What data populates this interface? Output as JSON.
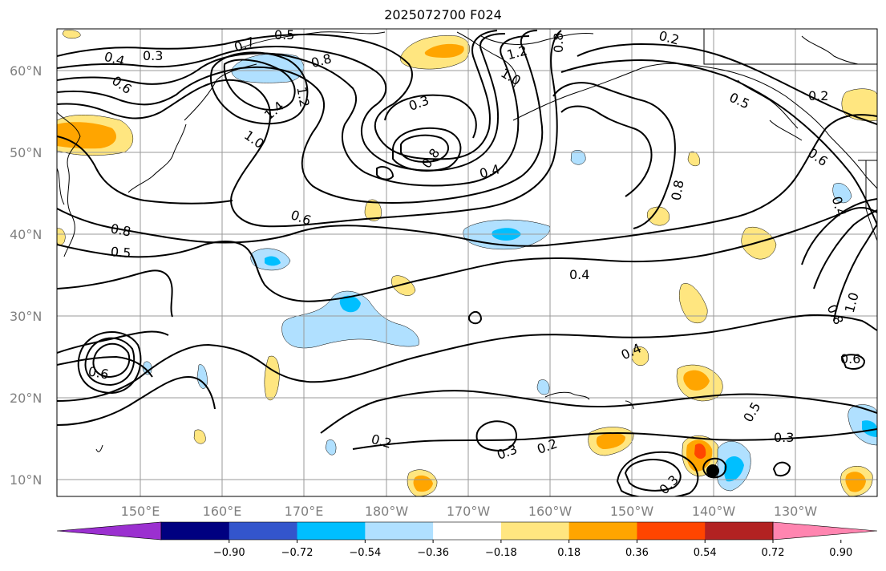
{
  "title": "2025072700 F024",
  "lat_labels": [
    "10°N",
    "20°N",
    "30°N",
    "40°N",
    "50°N",
    "60°N"
  ],
  "lon_labels": [
    "150°E",
    "160°E",
    "170°E",
    "180°W",
    "170°W",
    "160°W",
    "150°W",
    "140°W",
    "130°W"
  ],
  "contour_labels": [
    {
      "text": "0.5",
      "id": "c1"
    },
    {
      "text": "0.3",
      "id": "c2"
    },
    {
      "text": "0.4",
      "id": "c3"
    },
    {
      "text": "0.6",
      "id": "c4"
    },
    {
      "text": "0.7",
      "id": "c5"
    },
    {
      "text": "0.8",
      "id": "c6"
    },
    {
      "text": "1.2",
      "id": "c7"
    },
    {
      "text": "1.4",
      "id": "c8"
    },
    {
      "text": "1.0",
      "id": "c9"
    },
    {
      "text": "0.3",
      "id": "c10"
    },
    {
      "text": "0.8",
      "id": "c11"
    },
    {
      "text": "0.4",
      "id": "c12"
    },
    {
      "text": "0.6",
      "id": "c13"
    },
    {
      "text": "0.8",
      "id": "c14"
    },
    {
      "text": "0.5",
      "id": "c15"
    },
    {
      "text": "0.4",
      "id": "c16"
    },
    {
      "text": "0.2",
      "id": "c17"
    },
    {
      "text": "0.2",
      "id": "c18"
    },
    {
      "text": "0.5",
      "id": "c19"
    },
    {
      "text": "0.8",
      "id": "c20"
    },
    {
      "text": "0.6",
      "id": "c21"
    },
    {
      "text": "0.4",
      "id": "c22"
    },
    {
      "text": "0.3",
      "id": "c23"
    },
    {
      "text": "0.2",
      "id": "c24"
    },
    {
      "text": "0.3",
      "id": "c25"
    },
    {
      "text": "0.5",
      "id": "c26"
    },
    {
      "text": "0.3",
      "id": "c27"
    },
    {
      "text": "0.6",
      "id": "c28"
    },
    {
      "text": "1.0",
      "id": "c29"
    },
    {
      "text": "0.8",
      "id": "c30"
    },
    {
      "text": "1.2",
      "id": "c31"
    },
    {
      "text": "0.8",
      "id": "c32"
    },
    {
      "text": "1.0",
      "id": "c33"
    },
    {
      "text": "0.2",
      "id": "c34"
    },
    {
      "text": "0.6",
      "id": "c35"
    },
    {
      "text": "0.4",
      "id": "c36"
    }
  ],
  "colorbar": {
    "tick_labels": [
      "−0.90",
      "−0.72",
      "−0.54",
      "−0.36",
      "−0.18",
      "0.18",
      "0.36",
      "0.54",
      "0.72",
      "0.90"
    ],
    "colors": [
      "#9b30d0",
      "#000080",
      "#3355cc",
      "#00bfff",
      "#b0e0ff",
      "#ffffff",
      "#ffe680",
      "#ffa500",
      "#ff4500",
      "#b22222",
      "#ff85b0"
    ]
  },
  "colors": {
    "neg_light": "#b0e0ff",
    "neg_mid": "#00bfff",
    "pos_light": "#ffe680",
    "pos_mid": "#ffa500",
    "pos_strong": "#ff4500"
  }
}
